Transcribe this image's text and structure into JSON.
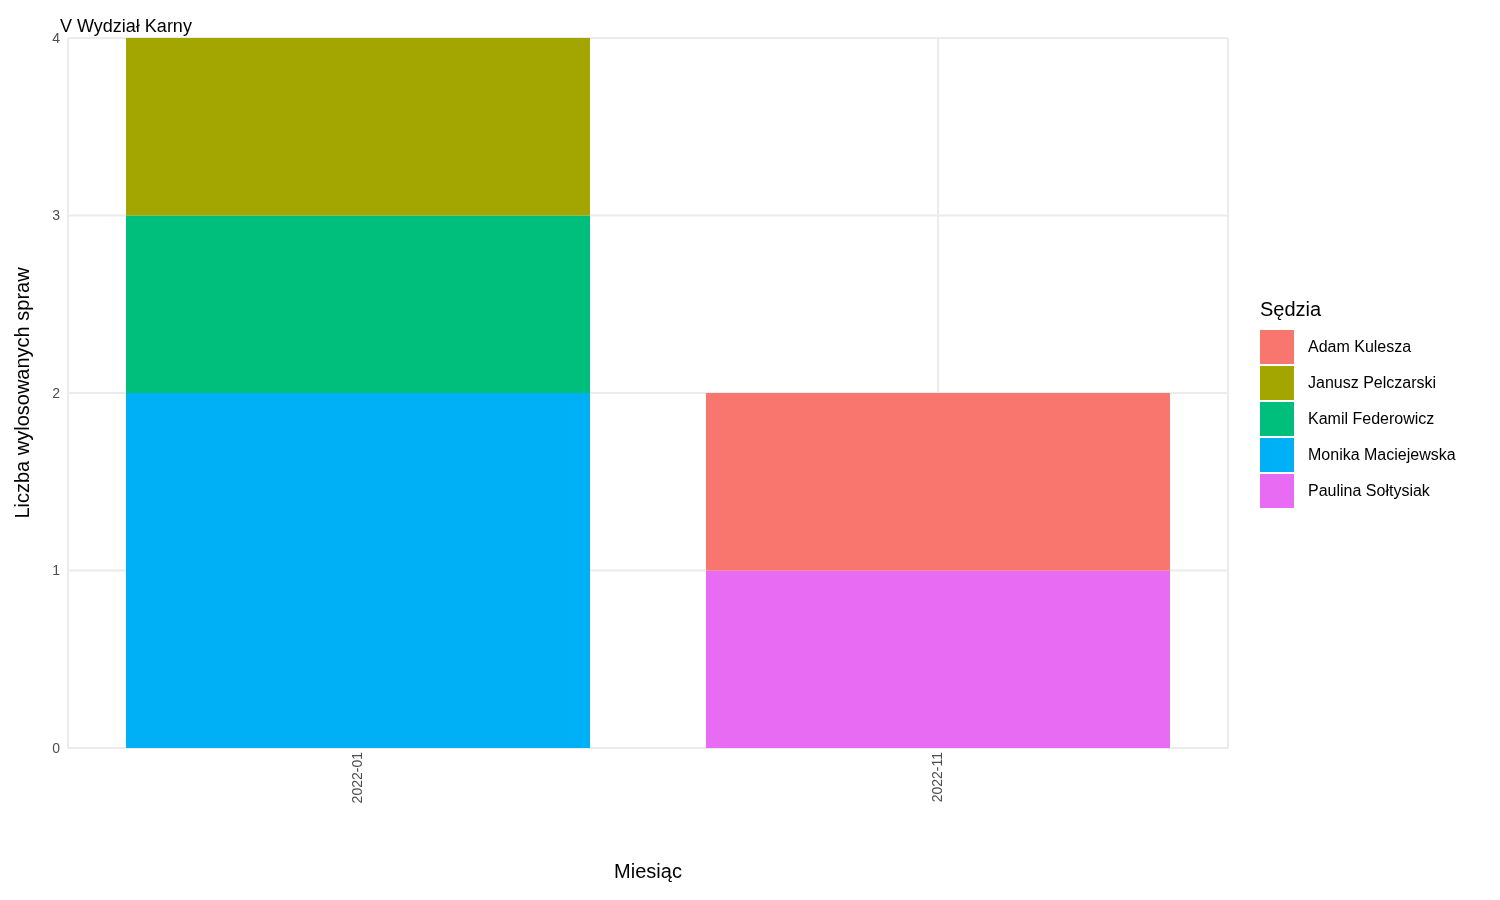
{
  "chart_data": {
    "type": "bar",
    "title": "V Wydział Karny",
    "xlabel": "Miesiąc",
    "ylabel": "Liczba wylosowanych spraw",
    "legend_title": "Sędzia",
    "categories": [
      "2022-01",
      "2022-11"
    ],
    "stacked": true,
    "series": [
      {
        "name": "Paulina Sołtysiak",
        "color": "#e76bf3",
        "values": [
          0,
          1
        ]
      },
      {
        "name": "Monika Maciejewska",
        "color": "#00b0f6",
        "values": [
          2,
          0
        ]
      },
      {
        "name": "Kamil Federowicz",
        "color": "#00bf7d",
        "values": [
          1,
          0
        ]
      },
      {
        "name": "Janusz Pelczarski",
        "color": "#a3a500",
        "values": [
          1,
          0
        ]
      },
      {
        "name": "Adam Kulesza",
        "color": "#f8766d",
        "values": [
          0,
          1
        ]
      }
    ],
    "ylim": [
      0,
      4
    ],
    "yticks": [
      0,
      1,
      2,
      3,
      4
    ],
    "grid": true,
    "legend": "right"
  }
}
